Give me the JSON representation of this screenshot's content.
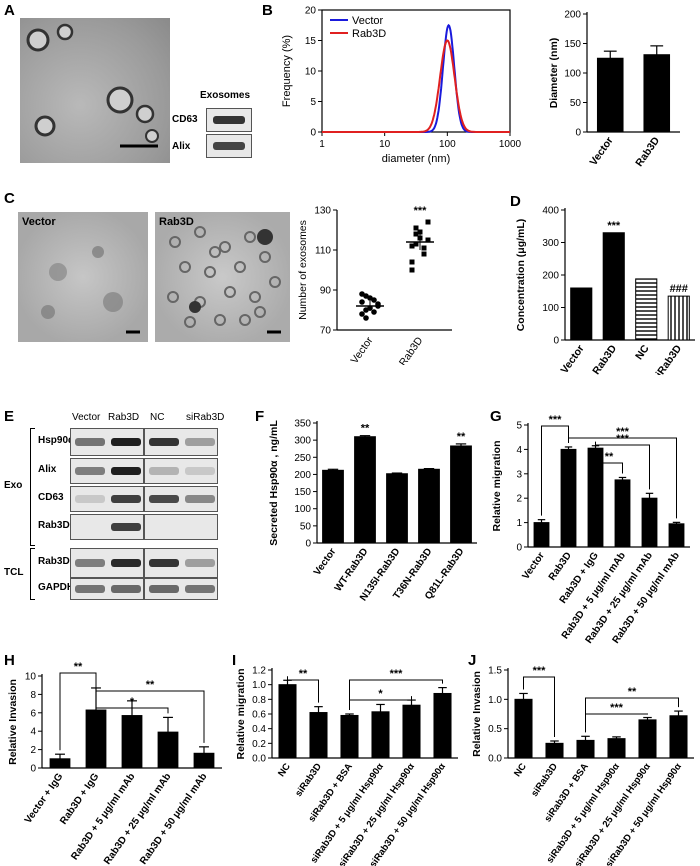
{
  "panels": {
    "A": {
      "label": "A",
      "blot_header": "Exosomes",
      "blot_rows": [
        "CD63",
        "Alix"
      ]
    },
    "B": {
      "label": "B",
      "curve": {
        "type": "line",
        "xlabel": "diameter (nm)",
        "ylabel": "Frequency (%)",
        "xscale": "log",
        "xlim": [
          1,
          1000
        ],
        "ylim": [
          0,
          20
        ],
        "xticks": [
          "1",
          "10",
          "100",
          "1000"
        ],
        "yticks": [
          "0",
          "5",
          "10",
          "15",
          "20"
        ],
        "series": [
          {
            "name": "Vector",
            "color": "#1a1adc",
            "peak_x": 105,
            "peak_y": 17.5
          },
          {
            "name": "Rab3D",
            "color": "#e02020",
            "peak_x": 100,
            "peak_y": 15.0
          }
        ]
      },
      "bar": {
        "type": "bar",
        "ylabel": "Diameter (nm)",
        "ylim": [
          0,
          200
        ],
        "yticks": [
          "0",
          "50",
          "100",
          "150",
          "200"
        ],
        "categories": [
          "Vector",
          "Rab3D"
        ],
        "values": [
          125,
          131
        ],
        "errors": [
          12,
          15
        ]
      }
    },
    "C": {
      "label": "C",
      "images": [
        "Vector",
        "Rab3D"
      ],
      "scatter": {
        "type": "scatter",
        "ylabel": "Number of exosomes",
        "ylim": [
          70,
          130
        ],
        "yticks": [
          "70",
          "90",
          "110",
          "130"
        ],
        "categories": [
          "Vector",
          "Rab3D"
        ],
        "means": [
          82,
          114
        ],
        "errors": [
          2.5,
          4
        ],
        "significance": [
          "",
          "***"
        ],
        "points": [
          [
            84,
            80,
            86,
            79,
            82,
            88,
            76,
            81,
            85,
            83,
            78,
            87
          ],
          [
            104,
            121,
            116,
            111,
            124,
            100,
            113,
            119,
            108,
            115,
            112,
            118
          ]
        ]
      }
    },
    "D": {
      "label": "D",
      "bar": {
        "type": "bar",
        "ylabel": "Concentration (μg/mL)",
        "ylim": [
          0,
          400
        ],
        "yticks": [
          "0",
          "100",
          "200",
          "300",
          "400"
        ],
        "categories": [
          "Vector",
          "Rab3D",
          "NC",
          "siRab3D"
        ],
        "values": [
          160,
          330,
          188,
          135
        ],
        "significance": [
          "",
          "***",
          "",
          "###"
        ]
      }
    },
    "E": {
      "label": "E",
      "columns": [
        "Vector",
        "Rab3D",
        "NC",
        "siRab3D"
      ],
      "groups": [
        "Exo",
        "TCL"
      ],
      "rows": [
        "Hsp90α",
        "Alix",
        "CD63",
        "Rab3D",
        "Rab3D",
        "GAPDH"
      ]
    },
    "F": {
      "label": "F",
      "bar": {
        "type": "bar",
        "ylabel": "Secreted Hsp90α , ng/mL",
        "ylim": [
          0,
          350
        ],
        "yticks": [
          "0",
          "50",
          "100",
          "150",
          "200",
          "250",
          "300",
          "350"
        ],
        "categories": [
          "Vector",
          "WT-Rab3D",
          "N135I-Rab3D",
          "T36N-Rab3D",
          "Q81L-Rab3D"
        ],
        "values": [
          212,
          310,
          202,
          215,
          283
        ],
        "errors": [
          3,
          3,
          2,
          2,
          6
        ],
        "significance": [
          "",
          "**",
          "",
          "",
          "**"
        ]
      }
    },
    "G": {
      "label": "G",
      "bar": {
        "type": "bar",
        "ylabel": "Relative migration",
        "ylim": [
          0,
          5
        ],
        "yticks": [
          "0",
          "1",
          "2",
          "3",
          "4",
          "5"
        ],
        "categories": [
          "Vector",
          "Rab3D",
          "Rab3D + IgG",
          "Rab3D + 5 μg/ml mAb",
          "Rab3D + 25 μg/ml mAb",
          "Rab3D + 50 μg/ml mAb"
        ],
        "values": [
          1.0,
          4.0,
          4.05,
          2.75,
          2.0,
          0.95
        ],
        "errors": [
          0.12,
          0.1,
          0.1,
          0.1,
          0.2,
          0.06
        ],
        "brackets": [
          {
            "from": 0,
            "to": 1,
            "text": "***"
          },
          {
            "from": 2,
            "to": 3,
            "text": "**"
          },
          {
            "from": 2,
            "to": 4,
            "text": "***"
          },
          {
            "from": 1,
            "to": 5,
            "text": "***"
          }
        ]
      }
    },
    "H": {
      "label": "H",
      "bar": {
        "type": "bar",
        "ylabel": "Relative Invasion",
        "ylim": [
          0,
          10
        ],
        "yticks": [
          "0",
          "2",
          "4",
          "6",
          "8",
          "10"
        ],
        "categories": [
          "Vector + IgG",
          "Rab3D + IgG",
          "Rab3D + 5 μg/ml mAb",
          "Rab3D + 25 μg/ml mAb",
          "Rab3D + 50 μg/ml mAb"
        ],
        "values": [
          1.0,
          6.3,
          5.7,
          3.9,
          1.6
        ],
        "errors": [
          0.5,
          2.4,
          1.6,
          1.6,
          0.7
        ],
        "brackets": [
          {
            "from": 0,
            "to": 1,
            "text": "**"
          },
          {
            "from": 1,
            "to": 3,
            "text": "*"
          },
          {
            "from": 1,
            "to": 4,
            "text": "**"
          }
        ]
      }
    },
    "I": {
      "label": "I",
      "bar": {
        "type": "bar",
        "ylabel": "Relative migration",
        "ylim": [
          0,
          1.2
        ],
        "yticks": [
          "0.0",
          "0.2",
          "0.4",
          "0.6",
          "0.8",
          "1.0",
          "1.2"
        ],
        "categories": [
          "NC",
          "siRab3D",
          "siRab3D + BSA",
          "siRab3D + 5 μg/ml Hsp90α",
          "siRab3D + 25 μg/ml Hsp90α",
          "siRab3D + 50 μg/ml Hsp90α"
        ],
        "values": [
          1.0,
          0.62,
          0.58,
          0.63,
          0.72,
          0.88
        ],
        "errors": [
          0.06,
          0.08,
          0.02,
          0.1,
          0.07,
          0.08
        ],
        "brackets": [
          {
            "from": 0,
            "to": 1,
            "text": "**"
          },
          {
            "from": 2,
            "to": 4,
            "text": "*"
          },
          {
            "from": 2,
            "to": 5,
            "text": "***"
          }
        ]
      }
    },
    "J": {
      "label": "J",
      "bar": {
        "type": "bar",
        "ylabel": "Relative Invasion",
        "ylim": [
          0,
          1.5
        ],
        "yticks": [
          "0.0",
          "0.5",
          "1.0",
          "1.5"
        ],
        "categories": [
          "NC",
          "siRab3D",
          "siRab3D + BSA",
          "siRab3D + 5 μg/ml Hsp90α",
          "siRab3D + 25 μg/ml Hsp90α",
          "siRab3D + 50 μg/ml Hsp90α"
        ],
        "values": [
          1.0,
          0.25,
          0.3,
          0.33,
          0.65,
          0.72
        ],
        "errors": [
          0.1,
          0.04,
          0.07,
          0.03,
          0.04,
          0.08
        ],
        "brackets": [
          {
            "from": 0,
            "to": 1,
            "text": "***"
          },
          {
            "from": 2,
            "to": 4,
            "text": "***"
          },
          {
            "from": 2,
            "to": 5,
            "text": "**"
          }
        ]
      }
    }
  }
}
